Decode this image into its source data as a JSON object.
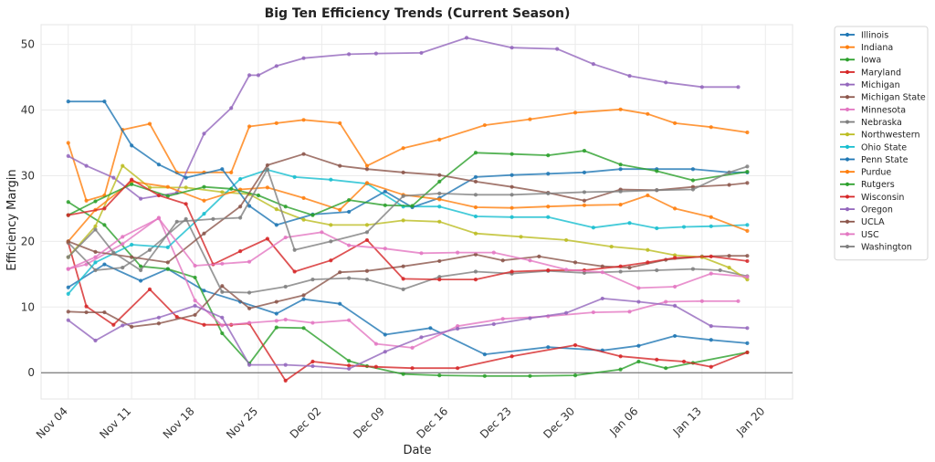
{
  "chart_data": {
    "type": "line",
    "title": "Big Ten Efficiency Trends (Current Season)",
    "xlabel": "Date",
    "ylabel": "Efficiency Margin",
    "ylim": [
      -4,
      53
    ],
    "yticks": [
      0,
      10,
      20,
      30,
      40,
      50
    ],
    "xlim_days": [
      -3,
      80
    ],
    "x_origin": "Nov 04",
    "xticks": [
      {
        "day": 0,
        "label": "Nov 04"
      },
      {
        "day": 7,
        "label": "Nov 11"
      },
      {
        "day": 14,
        "label": "Nov 18"
      },
      {
        "day": 21,
        "label": "Nov 25"
      },
      {
        "day": 28,
        "label": "Dec 02"
      },
      {
        "day": 35,
        "label": "Dec 09"
      },
      {
        "day": 42,
        "label": "Dec 16"
      },
      {
        "day": 49,
        "label": "Dec 23"
      },
      {
        "day": 56,
        "label": "Dec 30"
      },
      {
        "day": 63,
        "label": "Jan 06"
      },
      {
        "day": 70,
        "label": "Jan 13"
      },
      {
        "day": 77,
        "label": "Jan 20"
      }
    ],
    "grid": true,
    "legend_position": "outside-right",
    "series": [
      {
        "name": "Illinois",
        "color": "#1f77b4",
        "x": [
          0,
          4,
          8,
          11,
          15,
          19,
          23,
          26,
          30,
          35,
          40,
          46,
          53,
          59,
          63,
          67,
          71,
          75
        ],
        "y": [
          13,
          16.5,
          14,
          15.8,
          12.5,
          10.8,
          9,
          11.2,
          10.5,
          5.8,
          6.8,
          2.8,
          3.9,
          3.4,
          4.1,
          5.6,
          5.0,
          4.5
        ]
      },
      {
        "name": "Indiana",
        "color": "#ff7f0e",
        "x": [
          0,
          2,
          4,
          6,
          9,
          12,
          15,
          18,
          20,
          23,
          26,
          30,
          33,
          37,
          41,
          46,
          51,
          56,
          61,
          64,
          67,
          71,
          75
        ],
        "y": [
          35,
          26.2,
          27.0,
          37.0,
          37.9,
          30.5,
          30.5,
          30.5,
          37.5,
          38.0,
          38.5,
          38.0,
          31.5,
          34.2,
          35.5,
          37.7,
          38.6,
          39.6,
          40.1,
          39.4,
          38.0,
          37.4,
          36.6
        ]
      },
      {
        "name": "Iowa",
        "color": "#2ca02c",
        "x": [
          0,
          4,
          8,
          11,
          14,
          17,
          20,
          23,
          26,
          31,
          33,
          37,
          41,
          46,
          51,
          56,
          61,
          63,
          66,
          69,
          75
        ],
        "y": [
          26,
          22.5,
          16.2,
          15.8,
          14.5,
          6.0,
          1.4,
          6.9,
          6.8,
          1.8,
          1.0,
          -0.2,
          -0.4,
          -0.5,
          -0.5,
          -0.4,
          0.5,
          1.7,
          0.7,
          1.5,
          3.1
        ]
      },
      {
        "name": "Maryland",
        "color": "#d62728",
        "x": [
          0,
          2,
          5,
          9,
          12,
          15,
          18,
          20,
          24,
          27,
          31,
          34,
          38,
          43,
          49,
          56,
          61,
          65,
          68,
          71,
          75
        ],
        "y": [
          19.8,
          10.1,
          7.3,
          12.7,
          8.5,
          7.3,
          7.3,
          7.5,
          -1.2,
          1.7,
          1.1,
          0.9,
          0.7,
          0.7,
          2.5,
          4.2,
          2.5,
          2.0,
          1.7,
          0.9,
          3.1
        ]
      },
      {
        "name": "Michigan",
        "color": "#9467bd",
        "x": [
          0,
          2,
          5,
          8,
          12,
          15,
          18,
          20,
          21,
          23,
          26,
          31,
          34,
          39,
          44,
          49,
          54,
          58,
          62,
          66,
          70,
          74
        ],
        "y": [
          33,
          31.5,
          29.7,
          26.5,
          27.4,
          36.4,
          40.3,
          45.3,
          45.3,
          46.7,
          47.9,
          48.5,
          48.6,
          48.7,
          51.0,
          49.5,
          49.3,
          47.0,
          45.2,
          44.2,
          43.5,
          43.5
        ]
      },
      {
        "name": "Michigan State",
        "color": "#8c564b",
        "x": [
          0,
          2,
          4,
          7,
          10,
          14,
          17,
          20,
          23,
          26,
          30,
          33,
          37,
          41,
          45,
          48,
          52,
          56,
          59,
          62,
          66,
          70,
          73,
          75
        ],
        "y": [
          9.3,
          9.2,
          9.2,
          7.0,
          7.5,
          8.8,
          13.2,
          9.8,
          10.8,
          11.8,
          15.3,
          15.5,
          16.2,
          17.0,
          18.0,
          17.1,
          17.7,
          16.8,
          16.2,
          16.0,
          17.2,
          17.7,
          17.8,
          17.8
        ]
      },
      {
        "name": "Minnesota",
        "color": "#e377c2",
        "x": [
          0,
          2,
          6,
          10,
          14,
          17,
          20,
          23,
          24,
          27,
          31,
          34,
          38,
          43,
          48,
          53,
          58,
          62,
          66,
          70,
          74
        ],
        "y": [
          15.8,
          16.5,
          19.6,
          23.6,
          11.0,
          7.2,
          7.6,
          7.9,
          8.1,
          7.6,
          8.0,
          4.4,
          3.8,
          7.1,
          8.2,
          8.6,
          9.2,
          9.3,
          10.8,
          10.9,
          10.9
        ]
      },
      {
        "name": "Nebraska",
        "color": "#7f7f7f",
        "x": [
          0,
          3,
          6,
          9,
          13,
          17,
          20,
          24,
          27,
          31,
          33,
          37,
          41,
          45,
          49,
          53,
          57,
          61,
          65,
          69,
          72,
          75
        ],
        "y": [
          19.8,
          15.6,
          16.0,
          18.7,
          23.4,
          12.3,
          12.2,
          13.1,
          14.2,
          14.4,
          14.2,
          12.7,
          14.6,
          15.4,
          15.1,
          15.5,
          15.2,
          15.4,
          15.6,
          15.8,
          15.6,
          14.7
        ]
      },
      {
        "name": "Northwestern",
        "color": "#bcbd22",
        "x": [
          0,
          3,
          6,
          9,
          13,
          17,
          20,
          23,
          26,
          29,
          33,
          37,
          41,
          45,
          50,
          55,
          60,
          64,
          67,
          70,
          73,
          75
        ],
        "y": [
          17.6,
          22.3,
          31.5,
          28.2,
          28.2,
          27.5,
          27.2,
          24.9,
          23.3,
          22.5,
          22.5,
          23.2,
          23.0,
          21.2,
          20.7,
          20.2,
          19.2,
          18.7,
          17.9,
          17.6,
          16.0,
          14.2
        ]
      },
      {
        "name": "Ohio State",
        "color": "#17becf",
        "x": [
          0,
          3,
          7,
          11,
          15,
          19,
          22,
          25,
          29,
          33,
          37,
          41,
          45,
          49,
          53,
          58,
          62,
          65,
          68,
          71,
          75
        ],
        "y": [
          12,
          16.8,
          19.5,
          19.1,
          24.2,
          29.5,
          30.9,
          29.8,
          29.4,
          28.8,
          25.3,
          25.3,
          23.8,
          23.7,
          23.7,
          22.1,
          22.8,
          22.0,
          22.2,
          22.3,
          22.5
        ]
      },
      {
        "name": "Penn State",
        "color": "#1f77b4",
        "x": [
          0,
          4,
          7,
          10,
          13,
          17,
          20,
          23,
          27,
          31,
          35,
          38,
          41,
          45,
          49,
          53,
          57,
          61,
          65,
          69,
          73,
          75
        ],
        "y": [
          41.3,
          41.3,
          34.6,
          31.7,
          29.7,
          31.0,
          25.4,
          22.5,
          24.1,
          24.5,
          27.6,
          25.2,
          26.6,
          29.8,
          30.1,
          30.3,
          30.5,
          31.0,
          31.0,
          31.0,
          30.5,
          30.5
        ]
      },
      {
        "name": "Purdue",
        "color": "#ff7f0e",
        "x": [
          0,
          3,
          7,
          11,
          15,
          19,
          22,
          26,
          30,
          33,
          37,
          41,
          45,
          49,
          53,
          57,
          61,
          64,
          67,
          71,
          75
        ],
        "y": [
          20,
          24.8,
          29.1,
          28.3,
          26.2,
          27.9,
          28.2,
          26.6,
          24.8,
          28.9,
          27.1,
          26.4,
          25.2,
          25.1,
          25.3,
          25.5,
          25.6,
          27.0,
          25.0,
          23.7,
          21.6
        ]
      },
      {
        "name": "Rutgers",
        "color": "#2ca02c",
        "x": [
          0,
          3,
          7,
          11,
          15,
          18,
          21,
          24,
          27,
          31,
          35,
          38,
          41,
          45,
          49,
          53,
          57,
          61,
          65,
          69,
          75
        ],
        "y": [
          24,
          26.1,
          28.7,
          26.9,
          28.3,
          28.0,
          27.0,
          25.3,
          24.0,
          26.3,
          25.5,
          25.4,
          29.1,
          33.5,
          33.3,
          33.1,
          33.8,
          31.7,
          30.7,
          29.3,
          30.6
        ]
      },
      {
        "name": "Wisconsin",
        "color": "#d62728",
        "x": [
          0,
          4,
          7,
          10,
          13,
          16,
          19,
          22,
          25,
          29,
          33,
          37,
          41,
          45,
          49,
          53,
          57,
          61,
          64,
          67,
          71,
          75
        ],
        "y": [
          24,
          25.0,
          29.4,
          27.0,
          25.7,
          16.5,
          18.5,
          20.4,
          15.4,
          17.1,
          20.2,
          14.3,
          14.2,
          14.2,
          15.4,
          15.6,
          15.6,
          16.2,
          16.8,
          17.5,
          17.7,
          17.0
        ]
      },
      {
        "name": "Oregon",
        "color": "#9467bd",
        "x": [
          0,
          3,
          6,
          10,
          14,
          17,
          20,
          24,
          27,
          31,
          35,
          39,
          43,
          47,
          51,
          55,
          59,
          63,
          67,
          71,
          75
        ],
        "y": [
          8,
          4.9,
          7.2,
          8.4,
          10.2,
          8.4,
          1.2,
          1.2,
          1.0,
          0.6,
          3.2,
          5.4,
          6.7,
          7.4,
          8.3,
          9.1,
          11.3,
          10.8,
          10.2,
          7.1,
          6.8
        ]
      },
      {
        "name": "UCLA",
        "color": "#8c564b",
        "x": [
          0,
          3,
          7,
          11,
          15,
          19,
          22,
          26,
          30,
          33,
          37,
          41,
          45,
          49,
          53,
          57,
          61,
          65,
          69,
          73,
          75
        ],
        "y": [
          20,
          18.4,
          17.6,
          16.8,
          21.2,
          25.3,
          31.6,
          33.3,
          31.5,
          31.0,
          30.5,
          30.1,
          29.1,
          28.3,
          27.4,
          26.2,
          27.9,
          27.8,
          28.3,
          28.6,
          28.9
        ]
      },
      {
        "name": "USC",
        "color": "#e377c2",
        "x": [
          0,
          3,
          6,
          10,
          14,
          17,
          20,
          24,
          28,
          31,
          35,
          39,
          43,
          47,
          51,
          55,
          59,
          63,
          67,
          71,
          75
        ],
        "y": [
          15.8,
          17.6,
          20.7,
          23.5,
          16.3,
          16.6,
          16.9,
          20.6,
          21.4,
          19.4,
          18.9,
          18.2,
          18.3,
          18.3,
          17.1,
          15.7,
          15.3,
          12.9,
          13.1,
          15.1,
          14.6
        ]
      },
      {
        "name": "Washington",
        "color": "#7f7f7f",
        "x": [
          0,
          3,
          5,
          8,
          12,
          16,
          19,
          22,
          25,
          29,
          33,
          37,
          41,
          45,
          49,
          53,
          57,
          61,
          65,
          69,
          73,
          75
        ],
        "y": [
          17.6,
          21.8,
          18.3,
          15.6,
          23.0,
          23.4,
          23.6,
          31.0,
          18.7,
          20.0,
          21.4,
          26.9,
          27.3,
          27.1,
          27.1,
          27.3,
          27.5,
          27.6,
          27.8,
          27.9,
          30.5,
          31.4
        ]
      }
    ]
  }
}
